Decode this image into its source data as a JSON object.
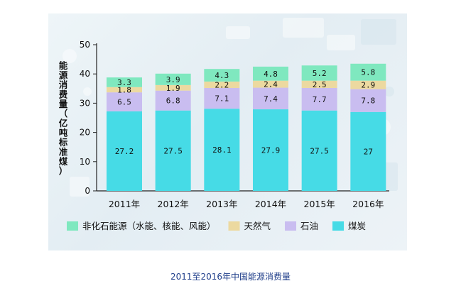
{
  "caption": "2011至2016年中国能源消费量",
  "chart_data": {
    "type": "bar",
    "stacked": true,
    "title": "",
    "xlabel": "",
    "ylabel": "能源消费量（亿吨标准煤）",
    "ylim": [
      0,
      50
    ],
    "yticks": [
      0,
      10,
      20,
      30,
      40,
      50
    ],
    "grid": false,
    "legend_position": "bottom",
    "categories": [
      "2011年",
      "2012年",
      "2013年",
      "2014年",
      "2015年",
      "2016年"
    ],
    "series": [
      {
        "name": "煤炭",
        "color": "#46dbe6",
        "values": [
          27.2,
          27.5,
          28.1,
          27.9,
          27.5,
          27
        ],
        "labels": [
          "27.2",
          "27.5",
          "28.1",
          "27.9",
          "27.5",
          "27"
        ]
      },
      {
        "name": "石油",
        "color": "#c9bdf0",
        "values": [
          6.5,
          6.8,
          7.1,
          7.4,
          7.7,
          7.8
        ],
        "labels": [
          "6.5",
          "6.8",
          "7.1",
          "7.4",
          "7.7",
          "7.8"
        ]
      },
      {
        "name": "天然气",
        "color": "#ecd9a0",
        "values": [
          1.8,
          1.9,
          2.2,
          2.4,
          2.5,
          2.9
        ],
        "labels": [
          "1.8",
          "1.9",
          "2.2",
          "2.4",
          "2.5",
          "2.9"
        ]
      },
      {
        "name": "非化石能源（水能、核能、风能）",
        "color": "#7fe8bf",
        "values": [
          3.3,
          3.9,
          4.3,
          4.8,
          5.2,
          5.8
        ],
        "labels": [
          "3.3",
          "3.9",
          "4.3",
          "4.8",
          "5.2",
          "5.8"
        ]
      }
    ],
    "legend_order": [
      3,
      2,
      1,
      0
    ]
  }
}
